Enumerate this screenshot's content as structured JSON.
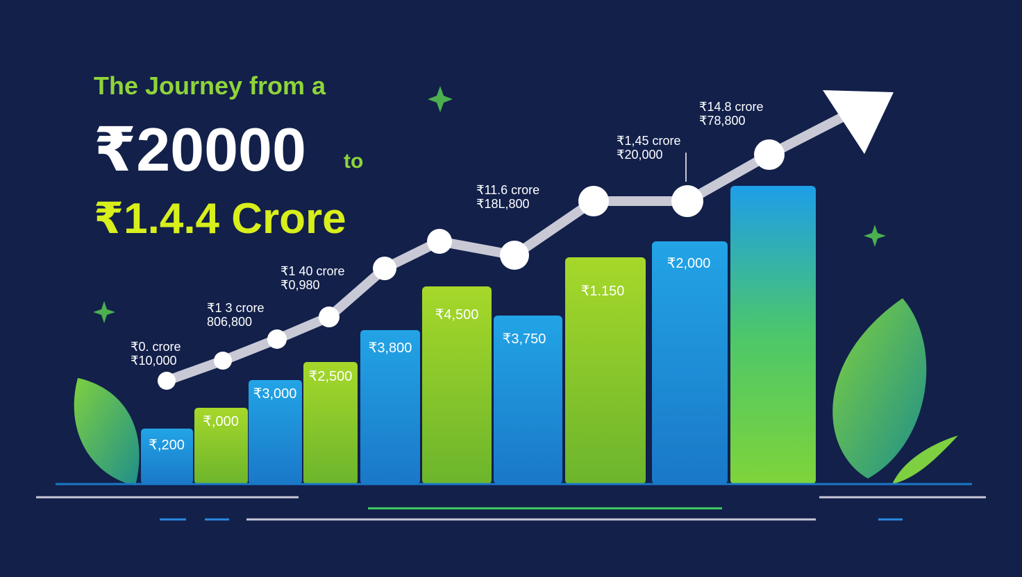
{
  "title": {
    "line1": "The Journey from a",
    "line2": "₹20000",
    "line2_suffix": "to",
    "line3": "₹1.4.4 Crore"
  },
  "bar_labels": [
    "₹,200",
    "₹,000",
    "₹3,000",
    "₹2,500",
    "₹3,800",
    "₹4,500",
    "₹3,750",
    "₹1.150",
    "₹2,000"
  ],
  "points": [
    {
      "line1": "₹0. crore",
      "line2": "₹10,000"
    },
    {
      "line1": "₹1 3 crore",
      "line2": "806,800"
    },
    {
      "line1": "₹1 40 crore",
      "line2": "₹0,980"
    },
    {
      "line1": "₹11.6 crore",
      "line2": "₹18L,800"
    },
    {
      "line1": "₹1,45 crore",
      "line2": "₹20,000"
    },
    {
      "line1": "₹14.8 crore",
      "line2": "₹78,800"
    }
  ]
}
